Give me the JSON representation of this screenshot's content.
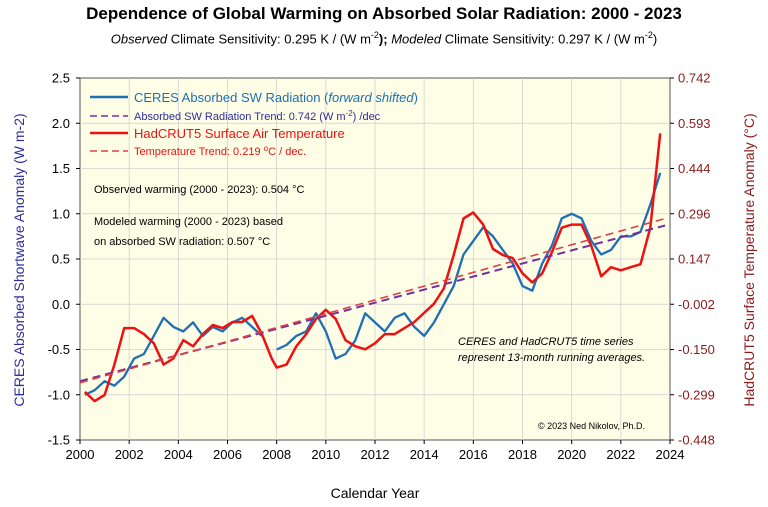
{
  "title": "Dependence of Global Warming on Absorbed Solar Radiation: 2000 - 2023",
  "subtitle": {
    "obs_label": "Observed",
    "obs_text": " Climate Sensitivity: 0.295 K / (W m",
    "obs_sup": "-2",
    "obs_end": ");",
    "mod_label": "Modeled",
    "mod_text": " Climate Sensitivity: 0.297 K / (W m",
    "mod_sup": "-2",
    "mod_end": ")"
  },
  "notes": {
    "observed_warming": "Observed warming (2000 - 2023): 0.504 °C",
    "modeled_line1": "Modeled warming (2000 - 2023) based",
    "modeled_line2": "on absorbed SW radiation: 0.507 °C",
    "ceres_note1": "CERES and HadCRUT5 time series",
    "ceres_note2": "represent 13-month running averages.",
    "copyright": "© 2023 Ned Nikolov, Ph.D."
  },
  "colors": {
    "ceres": "#1f6fb5",
    "ceres_trend": "#7030a0",
    "hadcrut": "#ee1111",
    "hadcrut_trend": "#e04040",
    "plot_bg": "#fefde6",
    "left_axis": "#2e2e9e",
    "right_axis": "#8b1a1a"
  },
  "chart_data": {
    "type": "line",
    "xlabel": "Calendar Year",
    "ylabel_left": "CERES Absorbed Shortwave Anomaly (W m-2)",
    "ylabel_right": "HadCRUT5 Surface Temperature Anomaly (°C)",
    "xlim": [
      2000,
      2024
    ],
    "ylim_left": [
      -1.5,
      2.5
    ],
    "ylim_right": [
      -0.448,
      0.742
    ],
    "x_ticks": [
      2000,
      2002,
      2004,
      2006,
      2008,
      2010,
      2012,
      2014,
      2016,
      2018,
      2020,
      2022,
      2024
    ],
    "y_ticks_left": [
      "-1.5",
      "-1.0",
      "-0.5",
      "0.0",
      "0.5",
      "1.0",
      "1.5",
      "2.0",
      "2.5"
    ],
    "y_ticks_right": [
      "-0.448",
      "-0.299",
      "-0.150",
      "-0.002",
      "0.147",
      "0.296",
      "0.444",
      "0.593",
      "0.742"
    ],
    "grid": true,
    "legend_position": "top-left",
    "series": [
      {
        "name": "CERES Absorbed SW Radiation (forward shifted)",
        "axis": "left",
        "x": [
          2000.2,
          2000.6,
          2001.0,
          2001.4,
          2001.8,
          2002.2,
          2002.6,
          2003.0,
          2003.4,
          2003.8,
          2004.2,
          2004.6,
          2005.0,
          2005.4,
          2005.8,
          2006.2,
          2006.6,
          2007.0,
          2007.4,
          2007.8,
          2008.0,
          2008.4,
          2008.8,
          2009.2,
          2009.6,
          2010.0,
          2010.4,
          2010.8,
          2011.2,
          2011.6,
          2012.0,
          2012.4,
          2012.8,
          2013.2,
          2013.6,
          2014.0,
          2014.4,
          2014.8,
          2015.2,
          2015.6,
          2016.0,
          2016.4,
          2016.8,
          2017.2,
          2017.6,
          2018.0,
          2018.4,
          2018.8,
          2019.2,
          2019.6,
          2020.0,
          2020.4,
          2020.8,
          2021.2,
          2021.6,
          2022.0,
          2022.4,
          2022.8,
          2023.2,
          2023.6
        ],
        "values": [
          -1.0,
          -0.95,
          -0.85,
          -0.9,
          -0.8,
          -0.6,
          -0.55,
          -0.35,
          -0.15,
          -0.25,
          -0.3,
          -0.2,
          -0.35,
          -0.25,
          -0.3,
          -0.2,
          -0.15,
          -0.25,
          -0.35,
          -0.4,
          -0.5,
          -0.45,
          -0.35,
          -0.3,
          -0.1,
          -0.3,
          -0.6,
          -0.55,
          -0.4,
          -0.1,
          -0.2,
          -0.3,
          -0.15,
          -0.1,
          -0.25,
          -0.35,
          -0.2,
          0.0,
          0.2,
          0.55,
          0.7,
          0.85,
          0.75,
          0.6,
          0.45,
          0.2,
          0.15,
          0.45,
          0.65,
          0.95,
          1.0,
          0.95,
          0.7,
          0.55,
          0.6,
          0.75,
          0.75,
          0.8,
          1.1,
          1.45
        ]
      },
      {
        "name": "Absorbed SW Radiation Trend: 0.742 (W m-2) /dec",
        "axis": "left",
        "x": [
          2000,
          2023.8
        ],
        "values": [
          -0.85,
          0.87
        ]
      },
      {
        "name": "HadCRUT5 Surface Air Temperature",
        "axis": "right",
        "x": [
          2000.2,
          2000.6,
          2001.0,
          2001.4,
          2001.8,
          2002.2,
          2002.6,
          2003.0,
          2003.4,
          2003.8,
          2004.2,
          2004.6,
          2005.0,
          2005.4,
          2005.8,
          2006.2,
          2006.6,
          2007.0,
          2007.4,
          2007.8,
          2008.0,
          2008.4,
          2008.8,
          2009.2,
          2009.6,
          2010.0,
          2010.4,
          2010.8,
          2011.2,
          2011.6,
          2012.0,
          2012.4,
          2012.8,
          2013.2,
          2013.6,
          2014.0,
          2014.4,
          2014.8,
          2015.2,
          2015.6,
          2016.0,
          2016.4,
          2016.8,
          2017.2,
          2017.6,
          2018.0,
          2018.4,
          2018.8,
          2019.2,
          2019.6,
          2020.0,
          2020.4,
          2020.8,
          2021.2,
          2021.6,
          2022.0,
          2022.4,
          2022.8,
          2023.2,
          2023.6
        ],
        "values": [
          -0.29,
          -0.32,
          -0.3,
          -0.2,
          -0.08,
          -0.08,
          -0.1,
          -0.13,
          -0.2,
          -0.18,
          -0.12,
          -0.14,
          -0.1,
          -0.07,
          -0.08,
          -0.06,
          -0.06,
          -0.04,
          -0.1,
          -0.18,
          -0.21,
          -0.2,
          -0.14,
          -0.1,
          -0.05,
          -0.02,
          -0.05,
          -0.12,
          -0.14,
          -0.15,
          -0.13,
          -0.1,
          -0.1,
          -0.08,
          -0.06,
          -0.03,
          0.0,
          0.05,
          0.16,
          0.28,
          0.3,
          0.26,
          0.18,
          0.16,
          0.15,
          0.1,
          0.07,
          0.1,
          0.17,
          0.25,
          0.26,
          0.26,
          0.19,
          0.09,
          0.12,
          0.11,
          0.12,
          0.13,
          0.25,
          0.56
        ]
      },
      {
        "name": "Temperature Trend: 0.219 °C / dec.",
        "axis": "right",
        "x": [
          2000,
          2023.8
        ],
        "values": [
          -0.26,
          0.28
        ]
      }
    ]
  }
}
